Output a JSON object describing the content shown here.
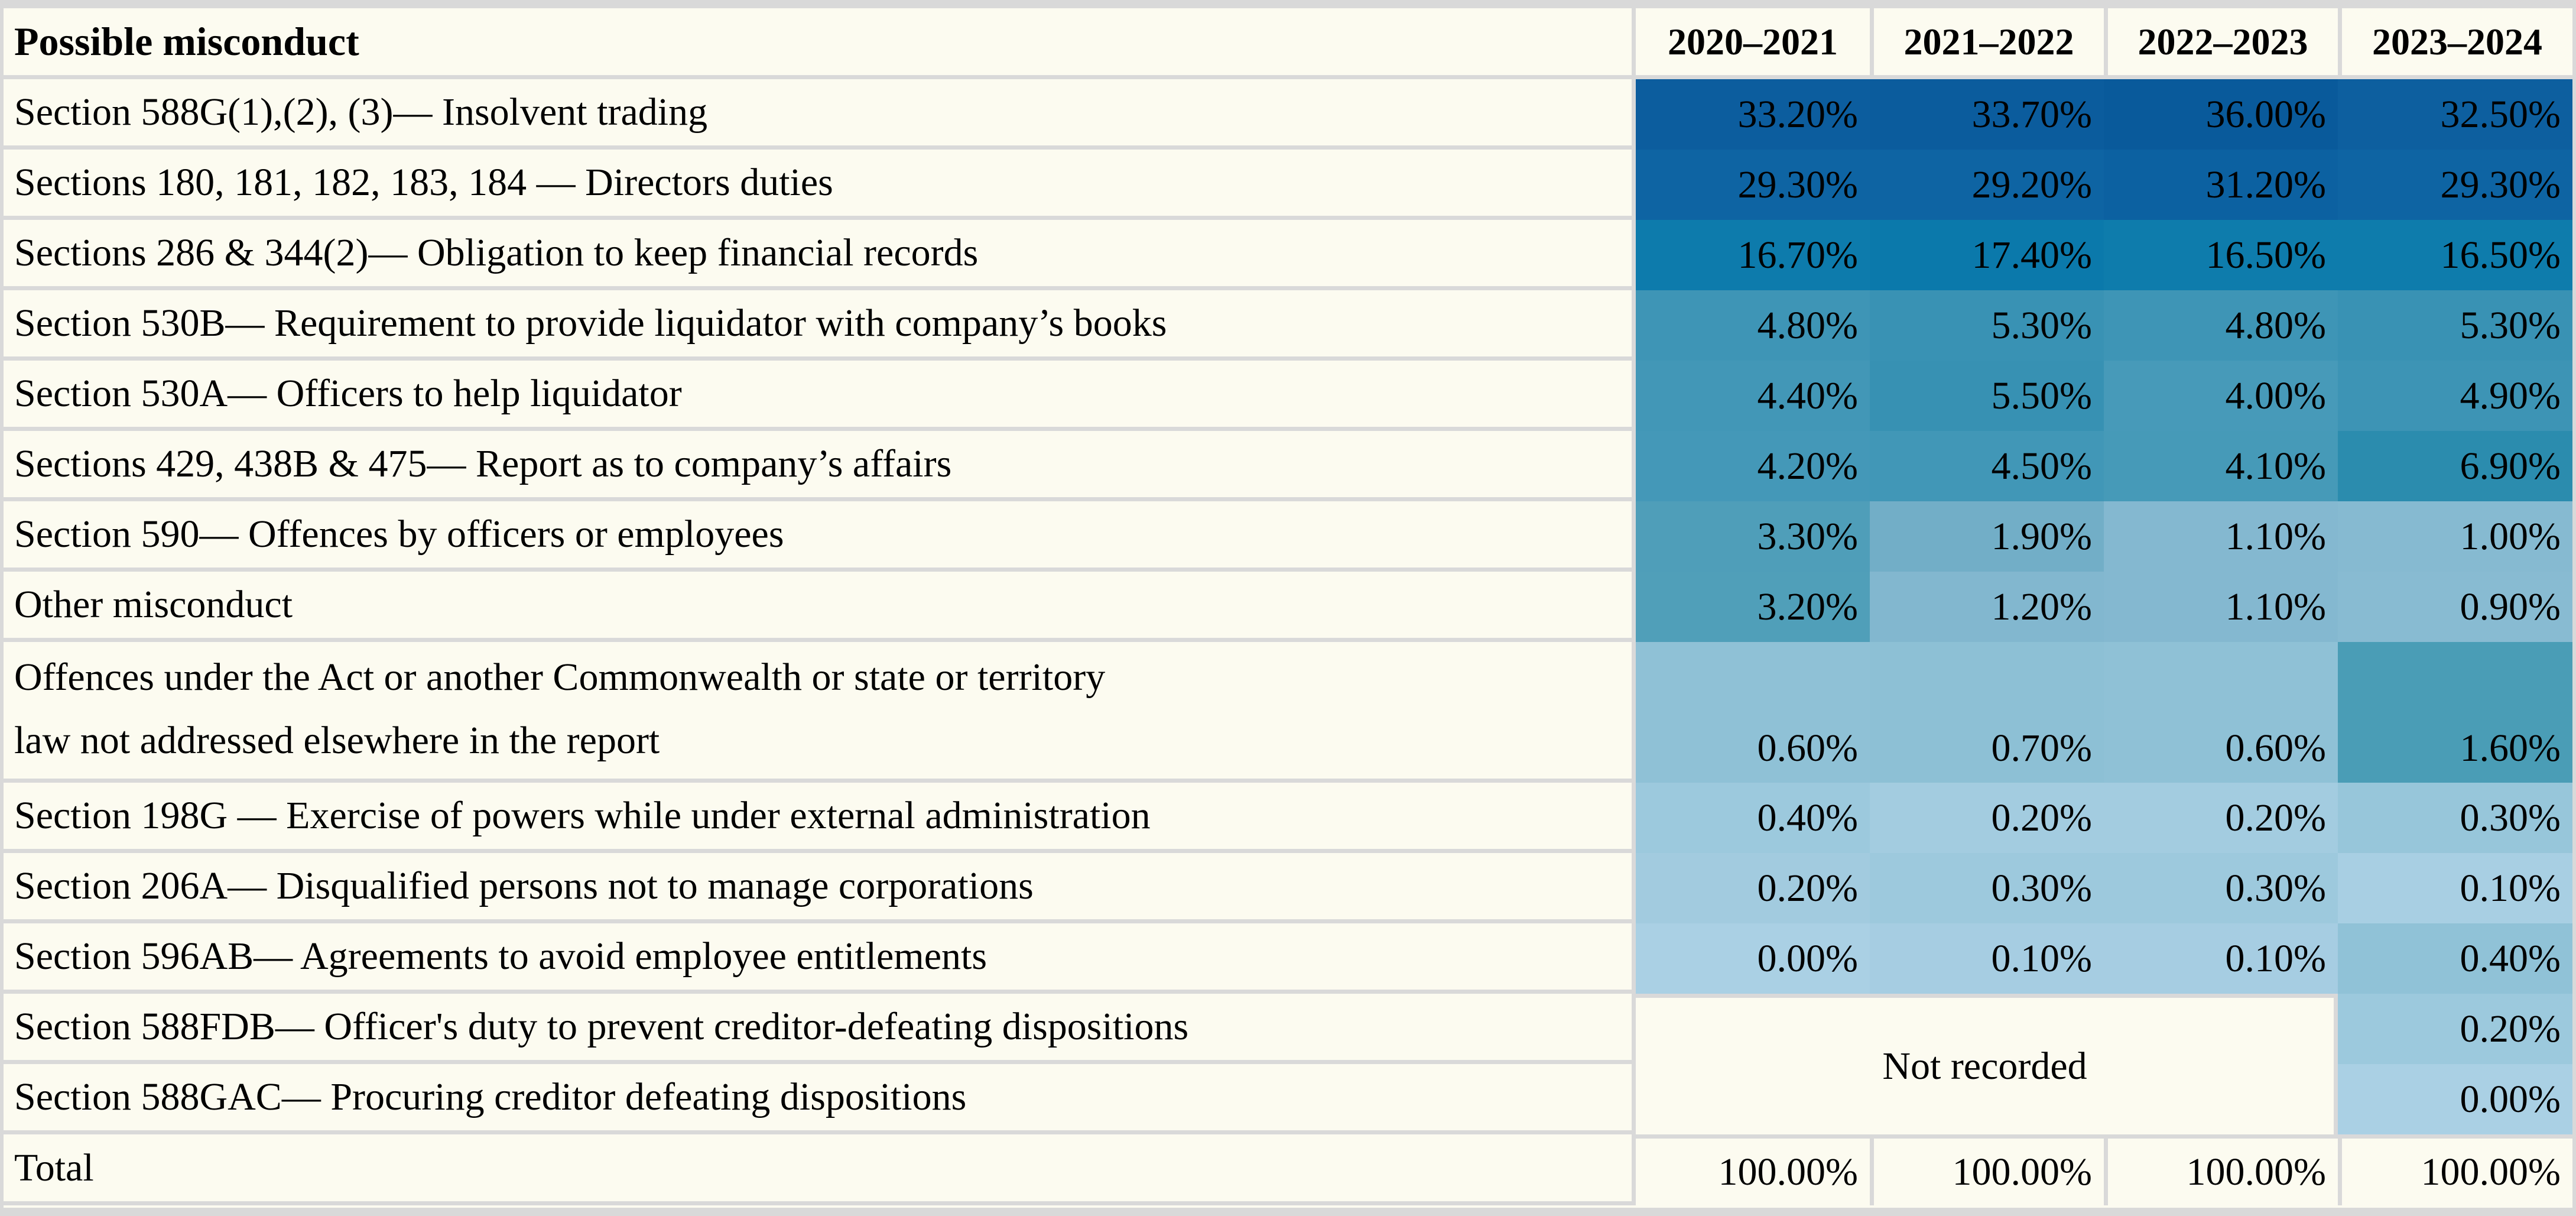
{
  "table": {
    "header": {
      "label_col": "Possible misconduct",
      "year_cols": [
        "2020–2021",
        "2021–2022",
        "2022–2023",
        "2023–2024"
      ]
    },
    "not_recorded_label": "Not recorded",
    "rows": [
      {
        "label": "Section 588G(1),(2), (3)— Insolvent trading",
        "values": [
          "33.20%",
          "33.70%",
          "36.00%",
          "32.50%"
        ],
        "colors": [
          "#0c5d9e",
          "#0b5c9d",
          "#095a9b",
          "#0d5f9f"
        ]
      },
      {
        "label": "Sections 180, 181, 182, 183, 184 — Directors duties",
        "values": [
          "29.30%",
          "29.20%",
          "31.20%",
          "29.30%"
        ],
        "colors": [
          "#0e64a3",
          "#0e64a3",
          "#0c61a1",
          "#0e64a3"
        ]
      },
      {
        "label": "Sections 286 & 344(2)— Obligation to keep financial records",
        "values": [
          "16.70%",
          "17.40%",
          "16.50%",
          "16.50%"
        ],
        "colors": [
          "#0d7bac",
          "#0b79ab",
          "#0e7cac",
          "#0e7cac"
        ]
      },
      {
        "label": "Section 530B— Requirement to provide liquidator with company’s books",
        "values": [
          "4.80%",
          "5.30%",
          "4.80%",
          "5.30%"
        ],
        "colors": [
          "#3e95b6",
          "#3992b4",
          "#3e95b6",
          "#3992b4"
        ]
      },
      {
        "label": "Section 530A— Officers to help liquidator",
        "values": [
          "4.40%",
          "5.50%",
          "4.00%",
          "4.90%"
        ],
        "colors": [
          "#4297b7",
          "#3791b3",
          "#479ab9",
          "#3d94b5"
        ]
      },
      {
        "label": "Sections 429, 438B & 475— Report as to company’s affairs",
        "values": [
          "4.20%",
          "4.50%",
          "4.10%",
          "6.90%"
        ],
        "colors": [
          "#4498b8",
          "#4197b7",
          "#469ab8",
          "#2b8cae"
        ]
      },
      {
        "label": "Section 590— Offences by officers or employees",
        "values": [
          "3.30%",
          "1.90%",
          "1.10%",
          "1.00%"
        ],
        "colors": [
          "#4f9eb9",
          "#72aec7",
          "#84b8d0",
          "#86bad1"
        ]
      },
      {
        "label": "Other misconduct",
        "values": [
          "3.20%",
          "1.20%",
          "1.10%",
          "0.90%"
        ],
        "colors": [
          "#509fb9",
          "#82b7cf",
          "#84b8d0",
          "#88bbd2"
        ]
      },
      {
        "label": "Offences under the Act or another Commonwealth or state or territory law not addressed elsewhere in the report",
        "label_lines": [
          "Offences under the Act or another Commonwealth or state or territory",
          "law not addressed elsewhere in the report"
        ],
        "tall": true,
        "values": [
          "0.60%",
          "0.70%",
          "0.60%",
          "1.60%"
        ],
        "colors": [
          "#8fc1d6",
          "#8dc0d5",
          "#8fc1d6",
          "#4a9db6"
        ]
      },
      {
        "label": "Section 198G — Exercise of powers while under external administration",
        "values": [
          "0.40%",
          "0.20%",
          "0.20%",
          "0.30%"
        ],
        "colors": [
          "#9cc9dd",
          "#a3cce0",
          "#a3cce0",
          "#97c6da"
        ]
      },
      {
        "label": "Section 206A— Disqualified persons not to manage corporations",
        "values": [
          "0.20%",
          "0.30%",
          "0.30%",
          "0.10%"
        ],
        "colors": [
          "#a2cbdf",
          "#9dc9dd",
          "#9dc9dd",
          "#a8cfe3"
        ]
      },
      {
        "label": "Section 596AB— Agreements to avoid employee entitlements",
        "values": [
          "0.00%",
          "0.10%",
          "0.10%",
          "0.40%"
        ],
        "colors": [
          "#aad0e4",
          "#a6cde2",
          "#a6cde2",
          "#90c2d7"
        ]
      },
      {
        "label": "Section 588FDB— Officer's duty to prevent creditor-defeating dispositions",
        "not_recorded": "start",
        "values": [
          null,
          null,
          null,
          "0.20%"
        ],
        "colors": [
          null,
          null,
          null,
          "#9cc9dd"
        ]
      },
      {
        "label": "Section 588GAC— Procuring creditor defeating dispositions",
        "not_recorded": "end",
        "values": [
          null,
          null,
          null,
          "0.00%"
        ],
        "colors": [
          null,
          null,
          null,
          "#aad0e4"
        ]
      },
      {
        "label": "Total",
        "is_total": true,
        "values": [
          "100.00%",
          "100.00%",
          "100.00%",
          "100.00%"
        ],
        "colors": [
          "#fcfbf0",
          "#fcfbf0",
          "#fcfbf0",
          "#fcfbf0"
        ]
      }
    ]
  },
  "colors": {
    "background_cream": "#fcfbf0",
    "grid_gray": "#d9d9d9",
    "heat_high": "#0b5c9d",
    "heat_mid": "#3e95b6",
    "heat_low": "#aad0e4",
    "text": "#000000"
  },
  "chart_data": {
    "type": "heatmap",
    "title": "Possible misconduct",
    "categories": [
      "2020–2021",
      "2021–2022",
      "2022–2023",
      "2023–2024"
    ],
    "units": "%",
    "rows": [
      {
        "label": "Section 588G(1),(2), (3)— Insolvent trading",
        "values": [
          33.2,
          33.7,
          36.0,
          32.5
        ]
      },
      {
        "label": "Sections 180, 181, 182, 183, 184 — Directors duties",
        "values": [
          29.3,
          29.2,
          31.2,
          29.3
        ]
      },
      {
        "label": "Sections 286 & 344(2)— Obligation to keep financial records",
        "values": [
          16.7,
          17.4,
          16.5,
          16.5
        ]
      },
      {
        "label": "Section 530B— Requirement to provide liquidator with company’s books",
        "values": [
          4.8,
          5.3,
          4.8,
          5.3
        ]
      },
      {
        "label": "Section 530A— Officers to help liquidator",
        "values": [
          4.4,
          5.5,
          4.0,
          4.9
        ]
      },
      {
        "label": "Sections 429, 438B & 475— Report as to company’s affairs",
        "values": [
          4.2,
          4.5,
          4.1,
          6.9
        ]
      },
      {
        "label": "Section 590— Offences by officers or employees",
        "values": [
          3.3,
          1.9,
          1.1,
          1.0
        ]
      },
      {
        "label": "Other misconduct",
        "values": [
          3.2,
          1.2,
          1.1,
          0.9
        ]
      },
      {
        "label": "Offences under the Act or another Commonwealth or state or territory law not addressed elsewhere in the report",
        "values": [
          0.6,
          0.7,
          0.6,
          1.6
        ]
      },
      {
        "label": "Section 198G — Exercise of powers while under external administration",
        "values": [
          0.4,
          0.2,
          0.2,
          0.3
        ]
      },
      {
        "label": "Section 206A— Disqualified persons not to manage corporations",
        "values": [
          0.2,
          0.3,
          0.3,
          0.1
        ]
      },
      {
        "label": "Section 596AB— Agreements to avoid employee entitlements",
        "values": [
          0.0,
          0.1,
          0.1,
          0.4
        ]
      },
      {
        "label": "Section 588FDB— Officer's duty to prevent creditor-defeating dispositions",
        "values": [
          null,
          null,
          null,
          0.2
        ]
      },
      {
        "label": "Section 588GAC— Procuring creditor defeating dispositions",
        "values": [
          null,
          null,
          null,
          0.0
        ]
      },
      {
        "label": "Total",
        "values": [
          100.0,
          100.0,
          100.0,
          100.0
        ]
      }
    ],
    "annotations": [
      {
        "text": "Not recorded",
        "applies_to_rows": [
          "Section 588FDB— Officer's duty to prevent creditor-defeating dispositions",
          "Section 588GAC— Procuring creditor defeating dispositions"
        ],
        "applies_to_columns": [
          "2020–2021",
          "2021–2022",
          "2022–2023"
        ]
      }
    ],
    "legend_position": "none",
    "grid": true,
    "color_scale": {
      "low": "#aad0e4",
      "mid": "#3e95b6",
      "high": "#0b5c9d"
    }
  }
}
